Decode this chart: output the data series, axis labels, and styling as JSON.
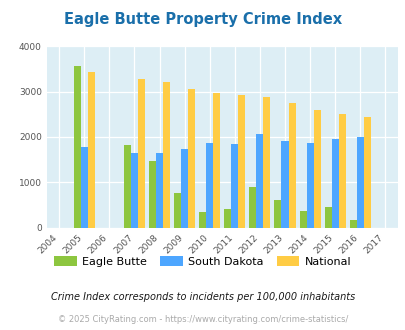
{
  "title": "Eagle Butte Property Crime Index",
  "years": [
    2004,
    2005,
    2006,
    2007,
    2008,
    2009,
    2010,
    2011,
    2012,
    2013,
    2014,
    2015,
    2016,
    2017
  ],
  "data_years": [
    2005,
    2007,
    2008,
    2009,
    2010,
    2011,
    2012,
    2013,
    2014,
    2015,
    2016
  ],
  "eagle_butte": [
    3570,
    1820,
    1480,
    760,
    355,
    410,
    890,
    620,
    370,
    455,
    175
  ],
  "south_dakota": [
    1780,
    1640,
    1640,
    1730,
    1870,
    1840,
    2060,
    1920,
    1870,
    1950,
    2000
  ],
  "national": [
    3430,
    3280,
    3210,
    3050,
    2960,
    2920,
    2880,
    2740,
    2600,
    2500,
    2450
  ],
  "color_eagle_butte": "#8dc63f",
  "color_south_dakota": "#4da6ff",
  "color_national": "#ffcc44",
  "bg_color": "#ddeef5",
  "fig_bg": "#ffffff",
  "ylim": [
    0,
    4000
  ],
  "yticks": [
    0,
    1000,
    2000,
    3000,
    4000
  ],
  "bar_width": 0.28,
  "legend_labels": [
    "Eagle Butte",
    "South Dakota",
    "National"
  ],
  "footnote1": "Crime Index corresponds to incidents per 100,000 inhabitants",
  "footnote2": "© 2025 CityRating.com - https://www.cityrating.com/crime-statistics/",
  "title_color": "#1a6faa",
  "footnote1_color": "#1a1a1a",
  "footnote2_color": "#aaaaaa"
}
